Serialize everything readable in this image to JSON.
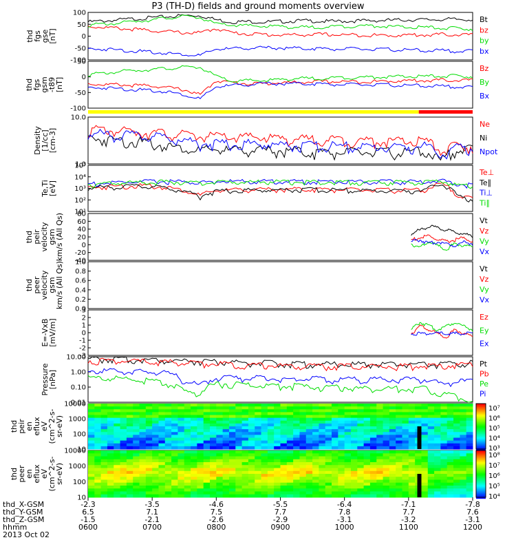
{
  "title": "P3 (TH-D) fields and ground moments overview",
  "date_label": "2013 Oct 02",
  "colors": {
    "black": "#000000",
    "red": "#ff0000",
    "green": "#00dd00",
    "blue": "#0000ff",
    "bar_yellow": "#ffff00",
    "bar_red": "#ff0000"
  },
  "chart_data": [
    {
      "id": "fgs_gse",
      "type": "line",
      "ylabel": [
        "thd",
        "fgs",
        "gse",
        "[nT]"
      ],
      "ylim": [
        -110,
        110
      ],
      "yticks": [
        "100",
        "50",
        "0",
        "-50",
        "-100"
      ],
      "series": [
        {
          "name": "Bt",
          "color": "black",
          "values": [
            70,
            75,
            80,
            85,
            90,
            95,
            100,
            100,
            80,
            70,
            72,
            70,
            72,
            75,
            75,
            72,
            74,
            75,
            77,
            78,
            80,
            80,
            82,
            82,
            82
          ]
        },
        {
          "name": "bz",
          "color": "red",
          "values": [
            50,
            45,
            40,
            35,
            30,
            25,
            20,
            20,
            40,
            20,
            15,
            12,
            10,
            10,
            12,
            12,
            10,
            10,
            8,
            8,
            10,
            10,
            12,
            12,
            10
          ]
        },
        {
          "name": "by",
          "color": "green",
          "values": [
            55,
            60,
            65,
            75,
            80,
            90,
            95,
            90,
            60,
            55,
            52,
            50,
            50,
            45,
            45,
            48,
            50,
            52,
            52,
            48,
            45,
            45,
            42,
            40,
            38
          ]
        },
        {
          "name": "bx",
          "color": "blue",
          "values": [
            -55,
            -55,
            -60,
            -65,
            -70,
            -75,
            -80,
            -85,
            -55,
            -55,
            -50,
            -50,
            -50,
            -52,
            -52,
            -55,
            -55,
            -55,
            -58,
            -58,
            -60,
            -62,
            -62,
            -65,
            -65
          ]
        }
      ]
    },
    {
      "id": "fgs_gsm",
      "type": "line",
      "ylabel": [
        "thd",
        "fgs",
        "gsm",
        "-t89",
        "[nT]"
      ],
      "ylim": [
        -130,
        100
      ],
      "yticks": [
        "50",
        "0",
        "-50",
        "-100"
      ],
      "series": [
        {
          "name": "Bz",
          "color": "red",
          "values": [
            -5,
            -10,
            -10,
            -15,
            -15,
            -25,
            -35,
            -60,
            10,
            0,
            -5,
            -5,
            0,
            0,
            5,
            5,
            5,
            5,
            5,
            8,
            10,
            10,
            12,
            12,
            12
          ]
        },
        {
          "name": "By",
          "color": "green",
          "values": [
            40,
            45,
            55,
            60,
            65,
            70,
            75,
            75,
            30,
            5,
            10,
            10,
            15,
            20,
            20,
            22,
            25,
            25,
            28,
            28,
            30,
            30,
            32,
            32,
            30
          ]
        },
        {
          "name": "Bx",
          "color": "blue",
          "values": [
            -25,
            -25,
            -30,
            -35,
            -40,
            -45,
            -60,
            -80,
            -20,
            -15,
            -10,
            -5,
            -5,
            -5,
            -5,
            -8,
            -10,
            -10,
            -12,
            -12,
            -15,
            -15,
            -18,
            -20,
            -25
          ]
        }
      ]
    },
    {
      "id": "density",
      "type": "line",
      "log": true,
      "ylabel": [
        "Density",
        "[1/cc]",
        "[cm-3]"
      ],
      "ylim": [
        0.2,
        12
      ],
      "yticks": [
        "10.0",
        "1.0"
      ],
      "series": [
        {
          "name": "Ne",
          "color": "red",
          "values": [
            5,
            4.8,
            4.5,
            4.2,
            4,
            3.5,
            3.2,
            2.8,
            2.8,
            2.5,
            2.6,
            2.5,
            2.3,
            2.2,
            2.1,
            2.2,
            2,
            1.9,
            1.9,
            1.8,
            1.8,
            1.9,
            0.8,
            1.2,
            1.2
          ]
        },
        {
          "name": "Ni",
          "color": "black",
          "values": [
            2.5,
            2.2,
            2,
            1.8,
            1.5,
            1.2,
            1,
            0.8,
            0.9,
            0.8,
            0.9,
            0.8,
            0.8,
            0.8,
            0.7,
            0.7,
            0.7,
            0.7,
            0.7,
            0.7,
            0.7,
            0.8,
            0.3,
            0.9,
            0.9
          ]
        },
        {
          "name": "Npot",
          "color": "blue",
          "values": [
            3.5,
            3.4,
            3.2,
            3,
            2.8,
            2.5,
            2,
            1.5,
            1.5,
            1.4,
            1.5,
            1.4,
            1.3,
            1.3,
            1.2,
            1.2,
            1.2,
            1.1,
            1.1,
            1.1,
            1.1,
            1.2,
            0.5,
            1,
            1
          ]
        }
      ]
    },
    {
      "id": "temperature",
      "type": "line",
      "log": true,
      "ylabel": [
        "Te,Ti",
        "[eV]"
      ],
      "ylim": [
        10,
        100000
      ],
      "yticks": [
        "10⁵",
        "10⁴",
        "10³",
        "10²",
        "10¹"
      ],
      "series": [
        {
          "name": "Te⊥",
          "color": "red",
          "values": [
            1500,
            1800,
            2000,
            2200,
            2000,
            1500,
            800,
            300,
            800,
            900,
            1000,
            1000,
            1000,
            1100,
            1100,
            1000,
            1000,
            900,
            900,
            900,
            900,
            900,
            3000,
            300,
            150
          ]
        },
        {
          "name": "Te∥",
          "color": "black",
          "values": [
            1300,
            1600,
            1800,
            2000,
            1800,
            1300,
            700,
            250,
            700,
            800,
            900,
            900,
            900,
            1000,
            1000,
            900,
            900,
            800,
            800,
            800,
            800,
            800,
            2800,
            250,
            130
          ]
        },
        {
          "name": "Ti⊥",
          "color": "blue",
          "values": [
            3000,
            3500,
            4000,
            4500,
            5000,
            5000,
            4500,
            4000,
            5000,
            5000,
            5000,
            5200,
            5200,
            5000,
            5000,
            5000,
            5000,
            4800,
            4800,
            4800,
            4800,
            4800,
            6000,
            3000,
            2500
          ]
        },
        {
          "name": "Ti∥",
          "color": "green",
          "values": [
            2800,
            3200,
            3600,
            4000,
            4500,
            4500,
            4000,
            3500,
            4500,
            4500,
            4500,
            4700,
            4700,
            4500,
            4500,
            4500,
            4500,
            4300,
            4300,
            4300,
            4300,
            4300,
            5500,
            2500,
            1800
          ]
        }
      ]
    },
    {
      "id": "peir_velocity",
      "type": "line",
      "ylabel": [
        "thd",
        "peir",
        "velocity",
        "gsm",
        "km/s (All Qs)"
      ],
      "ylim": [
        -40,
        80
      ],
      "yticks": [
        "80",
        "60",
        "40",
        "20",
        "0",
        "-20",
        "-40"
      ],
      "start_fraction": 0.84,
      "series": [
        {
          "name": "Vt",
          "color": "black",
          "values": [
            30,
            40,
            50,
            45,
            40,
            35,
            30,
            25
          ]
        },
        {
          "name": "Vz",
          "color": "red",
          "values": [
            15,
            20,
            25,
            15,
            10,
            15,
            20,
            10
          ]
        },
        {
          "name": "Vy",
          "color": "green",
          "values": [
            5,
            -5,
            10,
            0,
            -10,
            5,
            0,
            -5
          ]
        },
        {
          "name": "Vx",
          "color": "blue",
          "values": [
            10,
            15,
            5,
            10,
            5,
            0,
            10,
            5
          ]
        }
      ]
    },
    {
      "id": "peer_velocity",
      "type": "line",
      "ylabel": [
        "thd",
        "peer",
        "velocity",
        "gsm",
        "km/s (All Qs)"
      ],
      "ylim": [
        0,
        1
      ],
      "yticks": [
        "1.0",
        "0.8",
        "0.6",
        "0.4",
        "0.2",
        "0.0"
      ],
      "legend": [
        "Vt",
        "Vz",
        "Vy",
        "Vx"
      ],
      "series": []
    },
    {
      "id": "e_field",
      "type": "line",
      "ylabel": [
        "E=-VxB",
        "[mV/m]"
      ],
      "ylim": [
        -3,
        3
      ],
      "yticks": [
        "3",
        "2",
        "1",
        "0",
        "-1",
        "-2",
        "-3"
      ],
      "start_fraction": 0.84,
      "series": [
        {
          "name": "Ez",
          "color": "red",
          "values": [
            0,
            1,
            0.5,
            0,
            -0.5,
            0.5,
            0,
            -0.5
          ]
        },
        {
          "name": "Ey",
          "color": "green",
          "values": [
            0.5,
            1.5,
            1,
            0.5,
            1,
            1.5,
            1,
            0.5
          ]
        },
        {
          "name": "Ex",
          "color": "blue",
          "values": [
            0,
            0,
            0,
            0,
            0,
            0,
            0,
            0
          ]
        }
      ]
    },
    {
      "id": "pressure",
      "type": "line",
      "log": true,
      "ylabel": [
        "Pressure",
        "[nPa]"
      ],
      "ylim": [
        0.01,
        10
      ],
      "yticks": [
        "10.00",
        "1.00",
        "0.10",
        "0.01"
      ],
      "series": [
        {
          "name": "Pt",
          "color": "black",
          "values": [
            9,
            9,
            8.5,
            8,
            8,
            7.5,
            7,
            6.5,
            6,
            5.5,
            5,
            5,
            4.5,
            4.5,
            4,
            4,
            4,
            4,
            4,
            4,
            4,
            4,
            4,
            4.5,
            5
          ]
        },
        {
          "name": "Pb",
          "color": "red",
          "values": [
            7,
            7,
            6.5,
            6,
            6,
            5.5,
            5,
            4.5,
            4.5,
            4,
            3.5,
            3.5,
            3,
            3,
            3,
            3,
            3,
            3,
            3,
            3,
            3,
            3,
            3,
            3.5,
            4
          ]
        },
        {
          "name": "Pe",
          "color": "green",
          "values": [
            0.5,
            0.5,
            0.45,
            0.4,
            0.3,
            0.2,
            0.06,
            0.05,
            0.2,
            0.2,
            0.18,
            0.15,
            0.15,
            0.15,
            0.12,
            0.12,
            0.12,
            0.1,
            0.1,
            0.1,
            0.1,
            0.1,
            0.05,
            0.03,
            0.015
          ]
        },
        {
          "name": "Pi",
          "color": "blue",
          "values": [
            1.5,
            1.5,
            1.4,
            1.3,
            1.2,
            1,
            0.3,
            0.15,
            0.5,
            0.5,
            0.5,
            0.5,
            0.45,
            0.45,
            0.45,
            0.4,
            0.4,
            0.4,
            0.4,
            0.4,
            0.4,
            0.4,
            0.2,
            0.3,
            0.3
          ]
        }
      ]
    },
    {
      "id": "peir_spec",
      "type": "heatmap",
      "ylabel": [
        "thd",
        "peir",
        "en",
        "eflux",
        "eV",
        "(cm^2-s-",
        "sr-eV)"
      ],
      "ylim": [
        10,
        10000
      ],
      "yticks": [
        "10000",
        "1000",
        "100",
        "10"
      ],
      "colorbar_ticks": [
        "10⁷",
        "10⁶",
        "10⁵",
        "10⁴",
        "10³"
      ]
    },
    {
      "id": "peer_spec",
      "type": "heatmap",
      "ylabel": [
        "thd",
        "peer",
        "en",
        "eflux",
        "eV",
        "(cm^2-s-",
        "sr-eV)"
      ],
      "ylim": [
        10,
        10000
      ],
      "yticks": [
        "10000",
        "1000",
        "100",
        "10"
      ],
      "colorbar_ticks": [
        "10⁸",
        "10⁷",
        "10⁶",
        "10⁵",
        "10⁴"
      ]
    }
  ],
  "x_axis": {
    "rows": [
      {
        "label": "thd_X-GSM",
        "values": [
          "-2.3",
          "-3.5",
          "-4.6",
          "-5.5",
          "-6.4",
          "-7.1",
          "-7.8"
        ]
      },
      {
        "label": "thd_Y-GSM",
        "values": [
          "6.5",
          "7.1",
          "7.5",
          "7.7",
          "7.8",
          "7.7",
          "7.6"
        ]
      },
      {
        "label": "thd_Z-GSM",
        "values": [
          "-1.5",
          "-2.1",
          "-2.6",
          "-2.9",
          "-3.1",
          "-3.2",
          "-3.1"
        ]
      },
      {
        "label": "hhmm",
        "values": [
          "0600",
          "0700",
          "0800",
          "0900",
          "1000",
          "1100",
          "1200"
        ]
      }
    ]
  }
}
